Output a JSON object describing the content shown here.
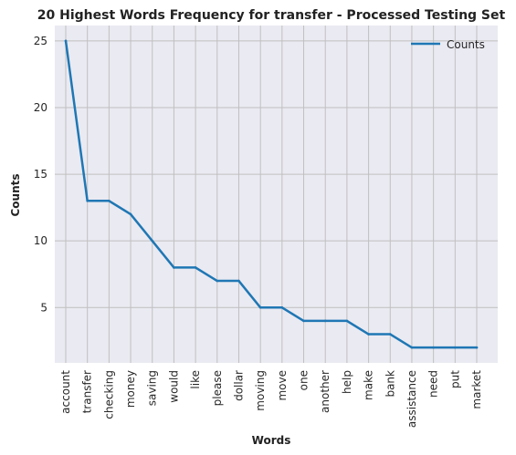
{
  "chart_data": {
    "type": "line",
    "title": "20 Highest Words Frequency for transfer - Processed Testing Set",
    "xlabel": "Words",
    "ylabel": "Counts",
    "categories": [
      "account",
      "transfer",
      "checking",
      "money",
      "saving",
      "would",
      "like",
      "please",
      "dollar",
      "moving",
      "move",
      "one",
      "another",
      "help",
      "make",
      "bank",
      "assistance",
      "need",
      "put",
      "market"
    ],
    "series": [
      {
        "name": "Counts",
        "values": [
          25,
          13,
          13,
          12,
          10,
          8,
          8,
          7,
          7,
          5,
          5,
          4,
          4,
          4,
          3,
          3,
          2,
          2,
          2,
          2
        ]
      }
    ],
    "ylim": [
      0.85,
      26.15
    ],
    "yticks": [
      5,
      10,
      15,
      20,
      25
    ],
    "grid": true,
    "legend": "top-right",
    "colors": {
      "line": "#1f77b4",
      "plot_bg": "#eaeaf2",
      "grid": "#c0c0c0"
    }
  }
}
